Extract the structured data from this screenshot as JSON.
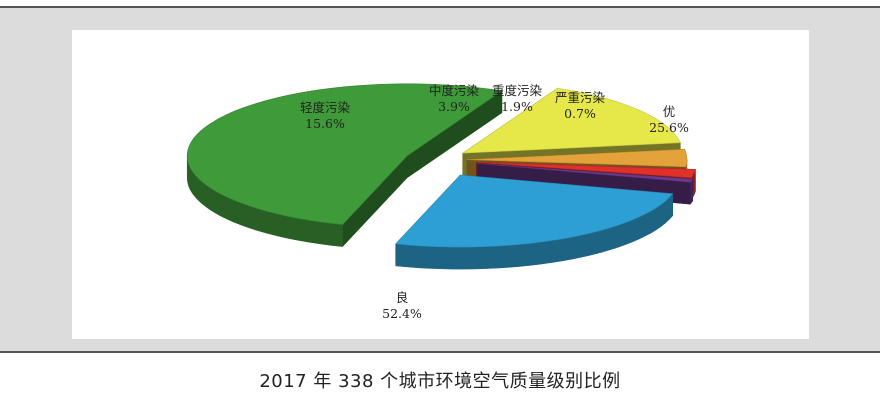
{
  "caption": "2017 年 338 个城市环境空气质量级别比例",
  "chart_data": {
    "type": "pie",
    "title": "2017 年 338 个城市环境空气质量级别比例",
    "unit": "%",
    "slices": [
      {
        "name": "优",
        "value": 25.6,
        "label": "25.6%",
        "color": "#2e9fd4"
      },
      {
        "name": "良",
        "value": 52.4,
        "label": "52.4%",
        "color": "#3f9a3a"
      },
      {
        "name": "轻度污染",
        "value": 15.6,
        "label": "15.6%",
        "color": "#e6e84a"
      },
      {
        "name": "中度污染",
        "value": 3.9,
        "label": "3.9%",
        "color": "#e3a33a"
      },
      {
        "name": "重度污染",
        "value": 1.9,
        "label": "1.9%",
        "color": "#e0302a"
      },
      {
        "name": "严重污染",
        "value": 0.7,
        "label": "0.7%",
        "color": "#6b3a8e"
      }
    ]
  }
}
